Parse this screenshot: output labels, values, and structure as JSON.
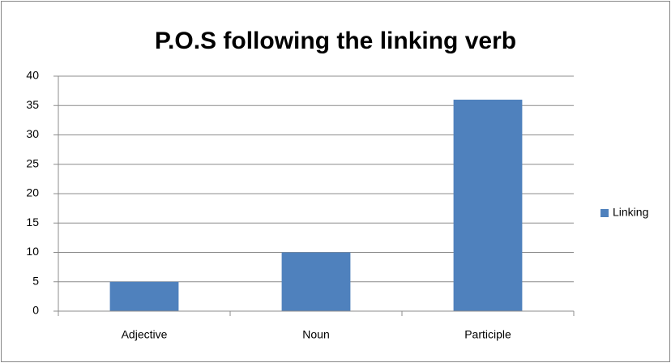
{
  "chart_data": {
    "type": "bar",
    "title": "P.O.S following the linking verb",
    "categories": [
      "Adjective",
      "Noun",
      "Participle"
    ],
    "series": [
      {
        "name": "Linking",
        "color": "#4f81bd",
        "values": [
          5,
          10,
          36
        ]
      }
    ],
    "ylim": [
      0,
      40
    ],
    "yticks": [
      0,
      5,
      10,
      15,
      20,
      25,
      30,
      35,
      40
    ],
    "grid": true,
    "legend": "right"
  }
}
